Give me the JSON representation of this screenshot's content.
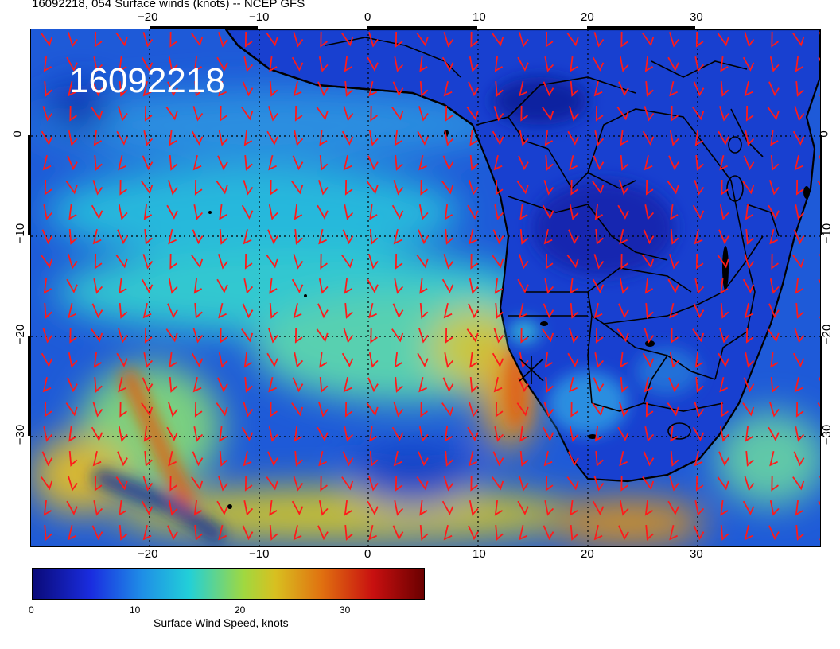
{
  "title": "16092218, 054 Surface winds (knots) -- NCEP GFS",
  "stamp": "16092218",
  "top_ticks": [
    "−20",
    "−10",
    "0",
    "10",
    "20",
    "30"
  ],
  "bottom_ticks": [
    "−20",
    "−10",
    "0",
    "10",
    "20",
    "30"
  ],
  "left_ticks": [
    "0",
    "−10",
    "−20",
    "−30"
  ],
  "right_ticks": [
    "0",
    "−10",
    "−20",
    "−30"
  ],
  "colorbar": {
    "title": "Surface Wind Speed, knots",
    "labels": [
      "0",
      "10",
      "20",
      "30"
    ],
    "colors": [
      "#0a0a78",
      "#1a2de0",
      "#1f8ee6",
      "#22d0d8",
      "#a0d840",
      "#d8c020",
      "#e07010",
      "#c81010",
      "#6a0000"
    ]
  },
  "icons": {
    "barb": "wind-barb-icon",
    "storm": "cyclone-marker-icon"
  },
  "colors": {
    "barb": "#ff1a1a",
    "coast": "#000000",
    "grid": "#000000"
  }
}
